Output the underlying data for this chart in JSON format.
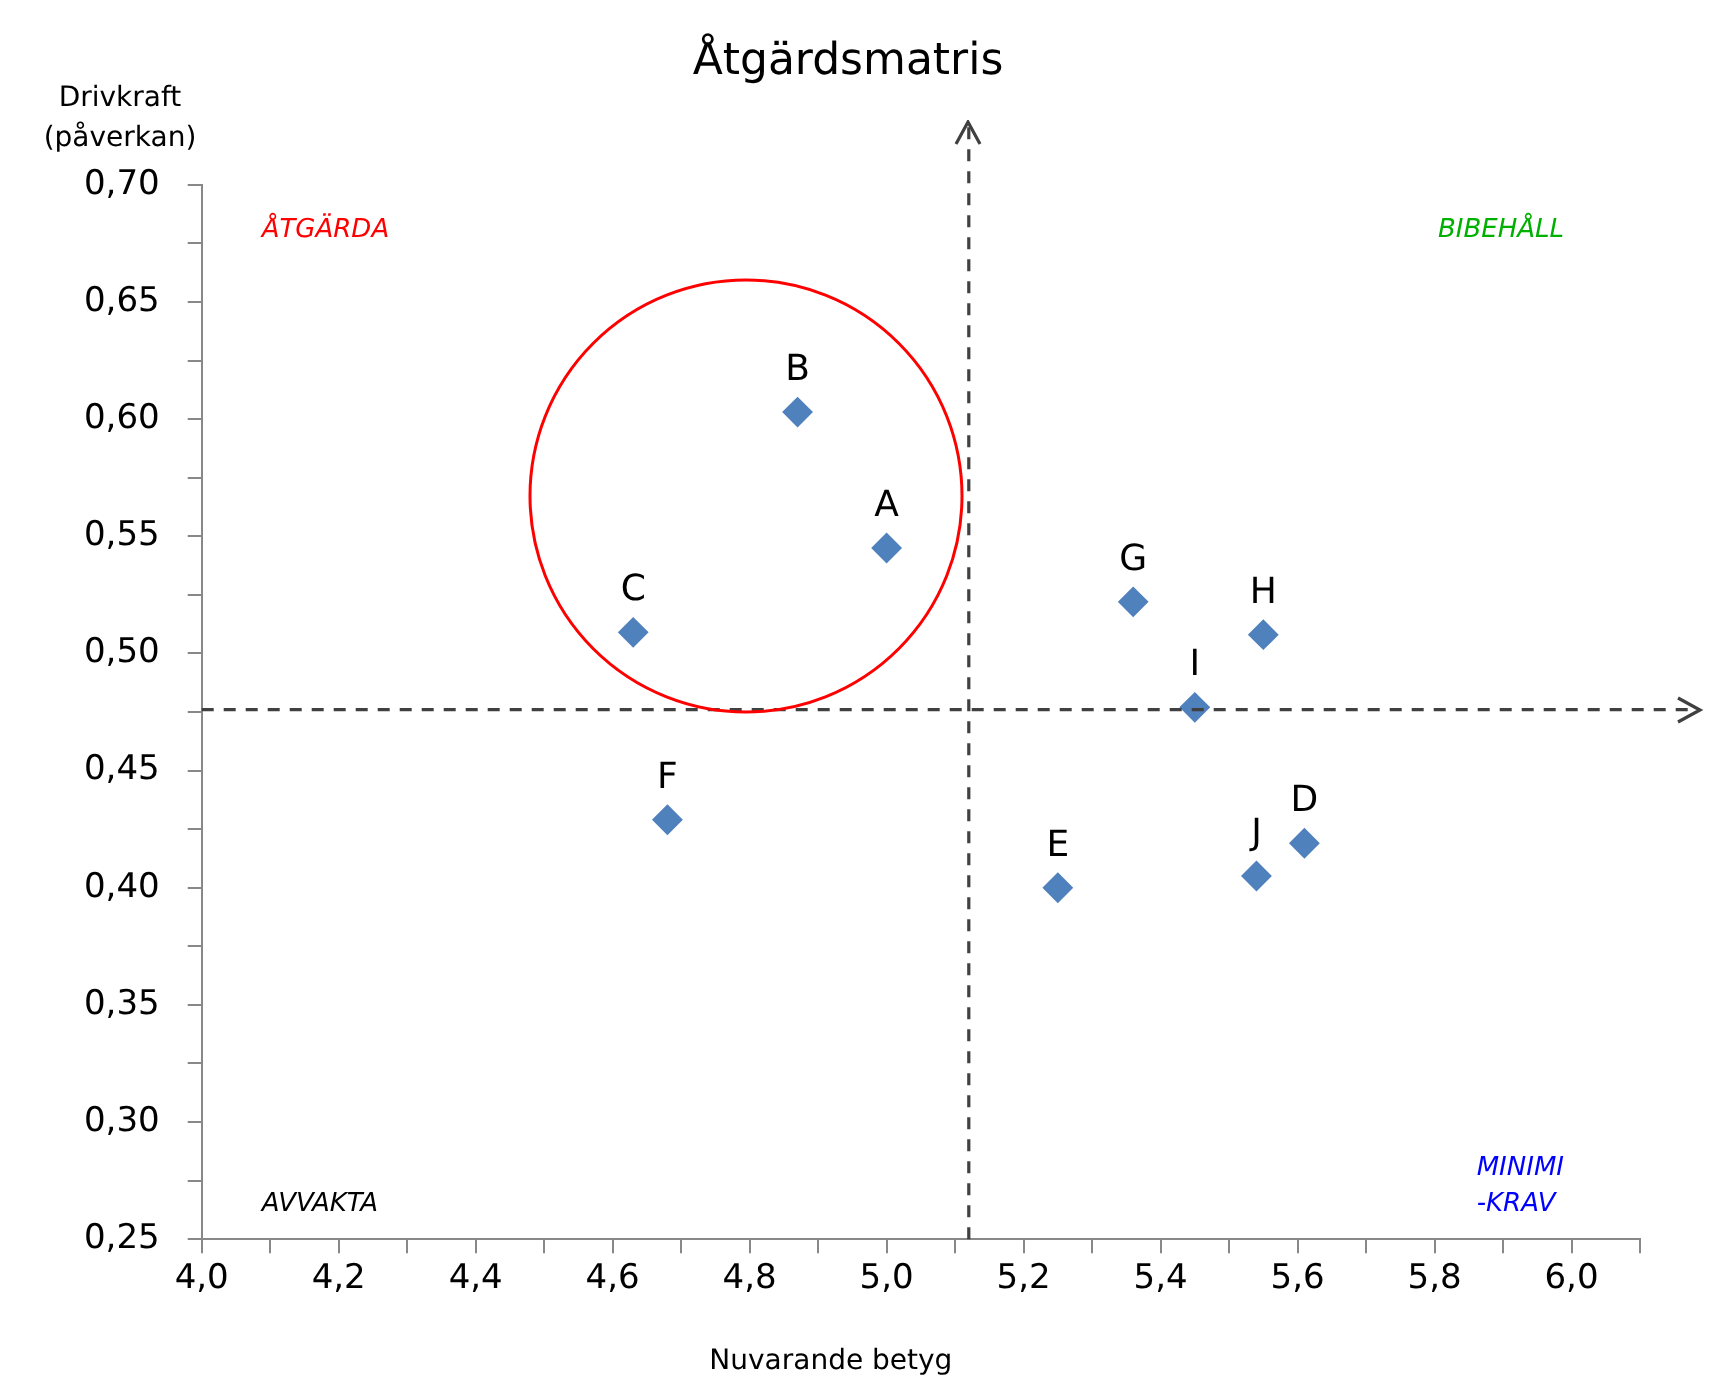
{
  "chart_data": {
    "type": "scatter",
    "title": "Åtgärdsmatris",
    "xlabel": "Nuvarande betyg",
    "ylabel": "Drivkraft\n(påverkan)",
    "annotations": [
      "ÅTGÄRDA",
      "BIBEHÅLL",
      "AVVAKTA",
      "MINIMI\n-KRAV"
    ],
    "x": [
      5.0,
      4.87,
      4.63,
      5.61,
      5.25,
      4.68,
      5.36,
      5.55,
      5.45,
      5.54
    ],
    "series": [
      {
        "color": "#4f81bd",
        "values": [
          0.545,
          0.603,
          0.509,
          0.419,
          0.4,
          0.429,
          0.522,
          0.508,
          0.477,
          0.405
        ],
        "value_labels": [
          "A",
          "B",
          "C",
          "D",
          "E",
          "F",
          "G",
          "H",
          "I",
          "J"
        ]
      }
    ],
    "marker": "diamond",
    "grid": false,
    "legend": false,
    "xlim": [
      4.0,
      6.1
    ],
    "xticks": [
      {
        "value": 4.0,
        "label": "4,0"
      },
      {
        "value": 4.1,
        "label": null
      },
      {
        "value": 4.2,
        "label": "4,2"
      },
      {
        "value": 4.3,
        "label": null
      },
      {
        "value": 4.4,
        "label": "4,4"
      },
      {
        "value": 4.5,
        "label": null
      },
      {
        "value": 4.6,
        "label": "4,6"
      },
      {
        "value": 4.7,
        "label": null
      },
      {
        "value": 4.8,
        "label": "4,8"
      },
      {
        "value": 4.9,
        "label": null
      },
      {
        "value": 5.0,
        "label": "5,0"
      },
      {
        "value": 5.1,
        "label": null
      },
      {
        "value": 5.2,
        "label": "5,2"
      },
      {
        "value": 5.3,
        "label": null
      },
      {
        "value": 5.4,
        "label": "5,4"
      },
      {
        "value": 5.5,
        "label": null
      },
      {
        "value": 5.6,
        "label": "5,6"
      },
      {
        "value": 5.7,
        "label": null
      },
      {
        "value": 5.8,
        "label": "5,8"
      },
      {
        "value": 5.9,
        "label": null
      },
      {
        "value": 6.0,
        "label": "6,0"
      },
      {
        "value": 6.1,
        "label": null
      }
    ],
    "ylim": [
      0.25,
      0.7
    ],
    "yticks": [
      {
        "value": 0.25,
        "label": "0,25"
      },
      {
        "value": 0.275,
        "label": null
      },
      {
        "value": 0.3,
        "label": "0,30"
      },
      {
        "value": 0.325,
        "label": null
      },
      {
        "value": 0.35,
        "label": "0,35"
      },
      {
        "value": 0.375,
        "label": null
      },
      {
        "value": 0.4,
        "label": "0,40"
      },
      {
        "value": 0.425,
        "label": null
      },
      {
        "value": 0.45,
        "label": "0,45"
      },
      {
        "value": 0.475,
        "label": null
      },
      {
        "value": 0.5,
        "label": "0,50"
      },
      {
        "value": 0.525,
        "label": null
      },
      {
        "value": 0.55,
        "label": "0,55"
      },
      {
        "value": 0.575,
        "label": null
      },
      {
        "value": 0.6,
        "label": "0,60"
      },
      {
        "value": 0.625,
        "label": null
      },
      {
        "value": 0.65,
        "label": "0,65"
      },
      {
        "value": 0.675,
        "label": null
      },
      {
        "value": 0.7,
        "label": "0,70"
      }
    ],
    "ref_lines": [
      {
        "axis": "x",
        "value": 5.12,
        "color": "#404040",
        "line_style": "dashed"
      },
      {
        "axis": "y",
        "value": 0.476,
        "color": "#404040",
        "line_style": "dashed"
      }
    ]
  }
}
